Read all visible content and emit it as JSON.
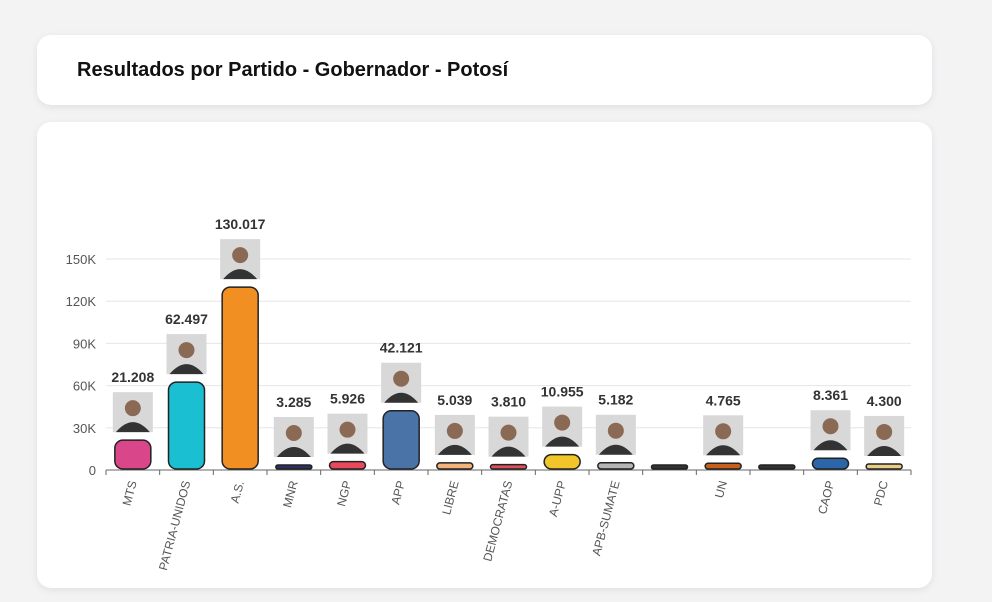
{
  "header": {
    "title": "Resultados por Partido - Gobernador - Potosí"
  },
  "chart_data": {
    "type": "bar",
    "title": "Resultados por Partido - Gobernador - Potosí",
    "categories": [
      "MTS",
      "PATRIA-UNIDOS",
      "A.S.",
      "MNR",
      "NGP",
      "APP",
      "LIBRE",
      "DEMOCRATAS",
      "A-UPP",
      "APB-SUMATE",
      "",
      "UN",
      "",
      "CAOP",
      "PDC"
    ],
    "values": [
      21208,
      62497,
      130017,
      3285,
      5926,
      42121,
      5039,
      3810,
      10955,
      5182,
      0,
      4765,
      0,
      8361,
      4300
    ],
    "data_labels": [
      "21.208",
      "62.497",
      "130.017",
      "3.285",
      "5.926",
      "42.121",
      "5.039",
      "3.810",
      "10.955",
      "5.182",
      "",
      "4.765",
      "",
      "8.361",
      "4.300"
    ],
    "colors": [
      "#d9468a",
      "#1bbfd2",
      "#f28f22",
      "#2d3161",
      "#e8495d",
      "#4a73a8",
      "#f2b47a",
      "#e0505c",
      "#f2c52a",
      "#b5b5b5",
      "#333333",
      "#c7601c",
      "#333333",
      "#2a66a8",
      "#e8cd86"
    ],
    "yticks": [
      "0",
      "30K",
      "60K",
      "90K",
      "120K",
      "150K"
    ],
    "ytick_values": [
      0,
      30000,
      60000,
      90000,
      120000,
      150000
    ],
    "ylim": [
      0,
      150000
    ],
    "grid": true,
    "xlabel": "",
    "ylabel": ""
  }
}
